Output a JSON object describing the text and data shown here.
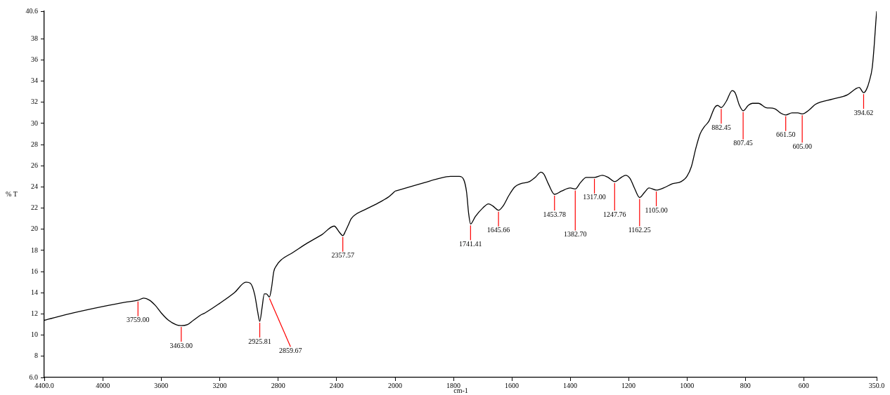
{
  "chart_data": [
    {
      "type": "line",
      "ylabel": "% T",
      "x": [
        4400,
        4200,
        4000,
        3850,
        3759,
        3720,
        3680,
        3640,
        3600,
        3550,
        3500,
        3463,
        3420,
        3380,
        3330,
        3300,
        3200,
        3100,
        3020,
        2990,
        2960,
        2940,
        2925.81,
        2910,
        2895,
        2880,
        2859.67,
        2845,
        2830,
        2810,
        2780,
        2700,
        2600,
        2500,
        2417,
        2380,
        2357.57,
        2340,
        2320,
        2300,
        2270,
        2200,
        2100,
        2040,
        2000
      ],
      "series": [
        {
          "color": "#000000",
          "values": [
            11.4,
            12.1,
            12.7,
            13.1,
            13.3,
            13.5,
            13.3,
            12.8,
            12.1,
            11.4,
            11.0,
            10.9,
            11.0,
            11.4,
            11.9,
            12.1,
            13.0,
            14.0,
            15.0,
            14.9,
            13.8,
            12.2,
            11.3,
            12.6,
            13.9,
            13.9,
            13.6,
            14.5,
            16.0,
            16.6,
            17.1,
            17.8,
            18.7,
            19.5,
            20.3,
            19.7,
            19.4,
            19.8,
            20.4,
            21.0,
            21.4,
            21.9,
            22.6,
            23.1,
            23.6
          ]
        }
      ],
      "xlim": [
        4400,
        2000
      ],
      "xticks": [
        {
          "value": 4400,
          "label": "4400.0"
        },
        4000,
        3600,
        3200,
        2800,
        2400
      ],
      "ylim": [
        6,
        40.6
      ],
      "yticks": [
        {
          "value": 6,
          "label": "6.0"
        },
        8,
        10,
        12,
        14,
        16,
        18,
        20,
        22,
        24,
        26,
        28,
        30,
        32,
        34,
        36,
        38,
        40.6
      ],
      "grid": false,
      "annotations": [
        {
          "text": "3759.00",
          "x": 3759,
          "y": 13.3
        },
        {
          "text": "3463.00",
          "x": 3463,
          "y": 10.9
        },
        {
          "text": "2925.81",
          "x": 2925.81,
          "y": 11.3
        },
        {
          "text": "2859.67",
          "x": 2859.67,
          "y": 13.6
        },
        {
          "text": "2357.57",
          "x": 2357.57,
          "y": 19.4
        }
      ]
    },
    {
      "type": "line",
      "xlabel": "cm-1",
      "x": [
        2000,
        1950,
        1900,
        1850,
        1810,
        1780,
        1765,
        1755,
        1748,
        1741.41,
        1725,
        1700,
        1680,
        1665,
        1645.66,
        1630,
        1610,
        1590,
        1570,
        1540,
        1520,
        1500,
        1490,
        1475,
        1453.78,
        1430,
        1400,
        1382.7,
        1365,
        1345,
        1317,
        1290,
        1270,
        1247.76,
        1225,
        1210,
        1195,
        1180,
        1162.25,
        1145,
        1130,
        1105,
        1080,
        1050,
        1020,
        1000,
        985,
        970,
        955,
        940,
        925,
        905,
        895,
        882.45,
        865,
        845,
        835,
        820,
        807.45,
        790,
        775,
        755,
        730,
        700,
        680,
        661.5,
        640,
        620,
        605,
        580,
        560,
        500,
        450,
        420,
        410,
        394.62,
        385,
        375,
        365,
        358,
        353,
        350
      ],
      "series": [
        {
          "color": "#000000",
          "values": [
            23.6,
            24.0,
            24.4,
            24.8,
            25.0,
            25.0,
            24.7,
            23.5,
            21.5,
            20.5,
            21.2,
            22.0,
            22.4,
            22.2,
            21.8,
            22.2,
            23.2,
            24.0,
            24.3,
            24.5,
            24.9,
            25.4,
            25.2,
            24.3,
            23.3,
            23.6,
            23.9,
            23.8,
            24.4,
            24.9,
            24.9,
            25.1,
            24.9,
            24.5,
            24.9,
            25.1,
            24.8,
            23.9,
            23.0,
            23.5,
            23.9,
            23.7,
            23.9,
            24.3,
            24.5,
            25.0,
            25.9,
            27.6,
            29.0,
            29.7,
            30.2,
            31.5,
            31.7,
            31.5,
            32.1,
            33.1,
            32.9,
            31.7,
            31.2,
            31.7,
            31.9,
            31.9,
            31.5,
            31.4,
            31.0,
            30.8,
            31.0,
            31.0,
            30.9,
            31.3,
            31.8,
            32.3,
            32.7,
            33.3,
            33.4,
            32.9,
            33.2,
            34.0,
            35.3,
            37.5,
            39.5,
            40.6
          ]
        }
      ],
      "xlim": [
        2000,
        350
      ],
      "xticks": [
        2000,
        1800,
        1600,
        1400,
        1200,
        1000,
        800,
        600,
        {
          "value": 350,
          "label": "350.0"
        }
      ],
      "ylim": [
        6,
        40.6
      ],
      "tick_labels": "x",
      "grid": false,
      "annotations": [
        {
          "text": "1741.41",
          "x": 1741.41,
          "y": 20.5
        },
        {
          "text": "1645.66",
          "x": 1645.66,
          "y": 21.8
        },
        {
          "text": "1453.78",
          "x": 1453.78,
          "y": 23.3
        },
        {
          "text": "1382.70",
          "x": 1382.7,
          "y": 23.8
        },
        {
          "text": "1317.00",
          "x": 1317,
          "y": 24.9
        },
        {
          "text": "1247.76",
          "x": 1247.76,
          "y": 24.5
        },
        {
          "text": "1162.25",
          "x": 1162.25,
          "y": 23.0
        },
        {
          "text": "1105.00",
          "x": 1105,
          "y": 23.7
        },
        {
          "text": "882.45",
          "x": 882.45,
          "y": 31.5
        },
        {
          "text": "807.45",
          "x": 807.45,
          "y": 31.2
        },
        {
          "text": "661.50",
          "x": 661.5,
          "y": 30.8
        },
        {
          "text": "605.00",
          "x": 605,
          "y": 30.9
        },
        {
          "text": "394.62",
          "x": 394.62,
          "y": 32.9
        }
      ]
    }
  ]
}
